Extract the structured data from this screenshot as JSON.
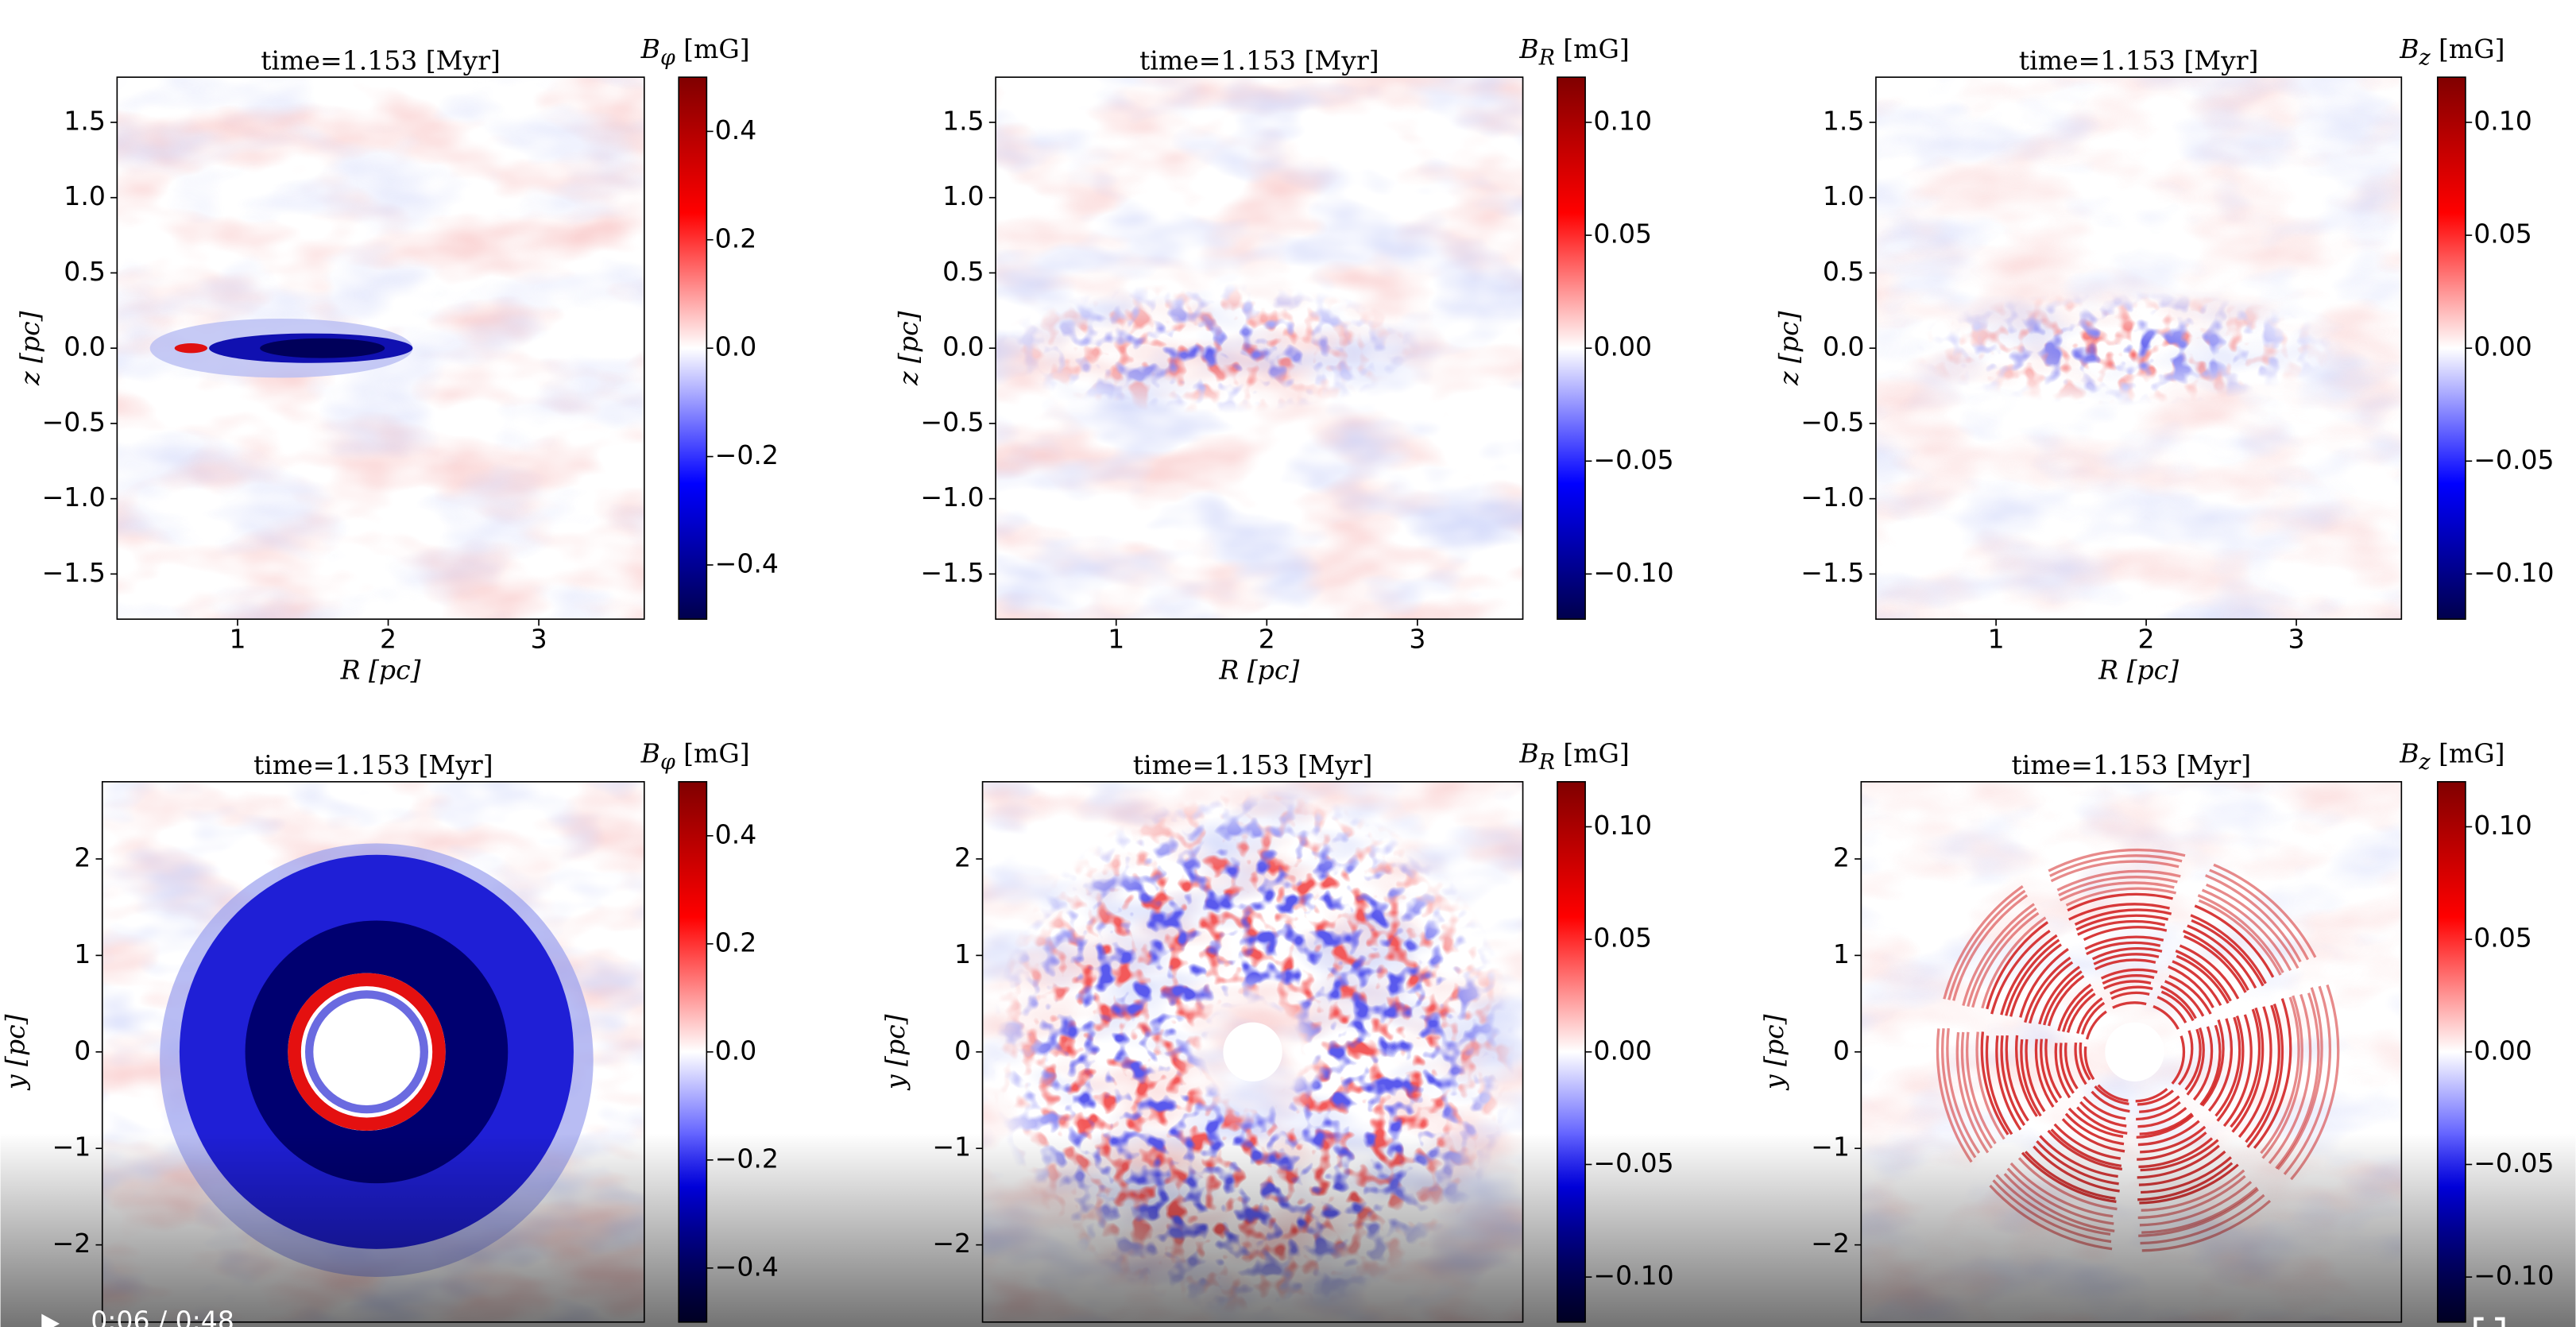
{
  "chart_data": [
    {
      "type": "image",
      "title": "time=1.153  [Myr]",
      "colorbar": {
        "symbol": "B",
        "sub": "φ",
        "unit": "[mG]"
      },
      "colormap": "seismic",
      "xlabel": "R [pc]",
      "ylabel": "z [pc]",
      "xlim": [
        0.2,
        3.7
      ],
      "xticks": [
        1,
        2,
        3
      ],
      "ylim": [
        -1.8,
        1.8
      ],
      "yticks": [
        1.5,
        {
          "value": 1,
          "label": "1.0"
        },
        0.5,
        {
          "value": 0,
          "label": "0.0"
        },
        {
          "value": -0.5,
          "label": "−0.5"
        },
        {
          "value": -1,
          "label": "−1.0"
        },
        {
          "value": -1.5,
          "label": "−1.5"
        }
      ],
      "clim": [
        -0.5,
        0.5
      ],
      "cticks": [
        {
          "value": 0.4,
          "label": "0.4"
        },
        {
          "value": 0.2,
          "label": "0.2"
        },
        {
          "value": 0,
          "label": "0.0"
        },
        {
          "value": -0.2,
          "label": "−0.2"
        },
        {
          "value": -0.4,
          "label": "−0.4"
        }
      ]
    },
    {
      "type": "image",
      "title": "time=1.153  [Myr]",
      "colorbar": {
        "symbol": "B",
        "sub": "R",
        "unit": "[mG]"
      },
      "colormap": "seismic",
      "xlabel": "R [pc]",
      "ylabel": "z [pc]",
      "xlim": [
        0.2,
        3.7
      ],
      "xticks": [
        1,
        2,
        3
      ],
      "ylim": [
        -1.8,
        1.8
      ],
      "yticks": [
        1.5,
        {
          "value": 1,
          "label": "1.0"
        },
        0.5,
        {
          "value": 0,
          "label": "0.0"
        },
        {
          "value": -0.5,
          "label": "−0.5"
        },
        {
          "value": -1,
          "label": "−1.0"
        },
        {
          "value": -1.5,
          "label": "−1.5"
        }
      ],
      "clim": [
        -0.12,
        0.12
      ],
      "cticks": [
        {
          "value": 0.1,
          "label": "0.10"
        },
        0.05,
        {
          "value": 0,
          "label": "0.00"
        },
        {
          "value": -0.05,
          "label": "−0.05"
        },
        {
          "value": -0.1,
          "label": "−0.10"
        }
      ]
    },
    {
      "type": "image",
      "title": "time=1.153  [Myr]",
      "colorbar": {
        "symbol": "B",
        "sub": "z",
        "unit": "[mG]"
      },
      "colormap": "seismic",
      "xlabel": "R [pc]",
      "ylabel": "z [pc]",
      "xlim": [
        0.2,
        3.7
      ],
      "xticks": [
        1,
        2,
        3
      ],
      "ylim": [
        -1.8,
        1.8
      ],
      "yticks": [
        1.5,
        {
          "value": 1,
          "label": "1.0"
        },
        0.5,
        {
          "value": 0,
          "label": "0.0"
        },
        {
          "value": -0.5,
          "label": "−0.5"
        },
        {
          "value": -1,
          "label": "−1.0"
        },
        {
          "value": -1.5,
          "label": "−1.5"
        }
      ],
      "clim": [
        -0.12,
        0.12
      ],
      "cticks": [
        {
          "value": 0.1,
          "label": "0.10"
        },
        0.05,
        {
          "value": 0,
          "label": "0.00"
        },
        {
          "value": -0.05,
          "label": "−0.05"
        },
        {
          "value": -0.1,
          "label": "−0.10"
        }
      ]
    },
    {
      "type": "image",
      "title": "time=1.153 [Myr]",
      "colorbar": {
        "symbol": "B",
        "sub": "φ",
        "unit": "[mG]"
      },
      "colormap": "seismic",
      "ylabel": "y [pc]",
      "ylim": [
        -2.8,
        2.8
      ],
      "yticks": [
        2,
        1,
        0,
        {
          "value": -1,
          "label": "−1"
        },
        {
          "value": -2,
          "label": "−2"
        }
      ],
      "clim": [
        -0.5,
        0.5
      ],
      "cticks": [
        {
          "value": 0.4,
          "label": "0.4"
        },
        {
          "value": 0.2,
          "label": "0.2"
        },
        {
          "value": 0,
          "label": "0.0"
        },
        {
          "value": -0.2,
          "label": "−0.2"
        },
        {
          "value": -0.4,
          "label": "−0.4"
        }
      ]
    },
    {
      "type": "image",
      "title": "time=1.153 [Myr]",
      "colorbar": {
        "symbol": "B",
        "sub": "R",
        "unit": "[mG]"
      },
      "colormap": "seismic",
      "ylabel": "y [pc]",
      "ylim": [
        -2.8,
        2.8
      ],
      "yticks": [
        2,
        1,
        0,
        {
          "value": -1,
          "label": "−1"
        },
        {
          "value": -2,
          "label": "−2"
        }
      ],
      "clim": [
        -0.12,
        0.12
      ],
      "cticks": [
        {
          "value": 0.1,
          "label": "0.10"
        },
        0.05,
        {
          "value": 0,
          "label": "0.00"
        },
        {
          "value": -0.05,
          "label": "−0.05"
        },
        {
          "value": -0.1,
          "label": "−0.10"
        }
      ]
    },
    {
      "type": "image",
      "title": "time=1.153 [Myr]",
      "colorbar": {
        "symbol": "B",
        "sub": "z",
        "unit": "[mG]"
      },
      "colormap": "seismic",
      "ylabel": "y [pc]",
      "ylim": [
        -2.8,
        2.8
      ],
      "yticks": [
        2,
        1,
        0,
        {
          "value": -1,
          "label": "−1"
        },
        {
          "value": -2,
          "label": "−2"
        }
      ],
      "clim": [
        -0.12,
        0.12
      ],
      "cticks": [
        {
          "value": 0.1,
          "label": "0.10"
        },
        0.05,
        {
          "value": 0,
          "label": "0.00"
        },
        {
          "value": -0.05,
          "label": "−0.05"
        },
        {
          "value": -0.1,
          "label": "−0.10"
        }
      ]
    }
  ],
  "player": {
    "time": "0:06 / 0:48"
  }
}
